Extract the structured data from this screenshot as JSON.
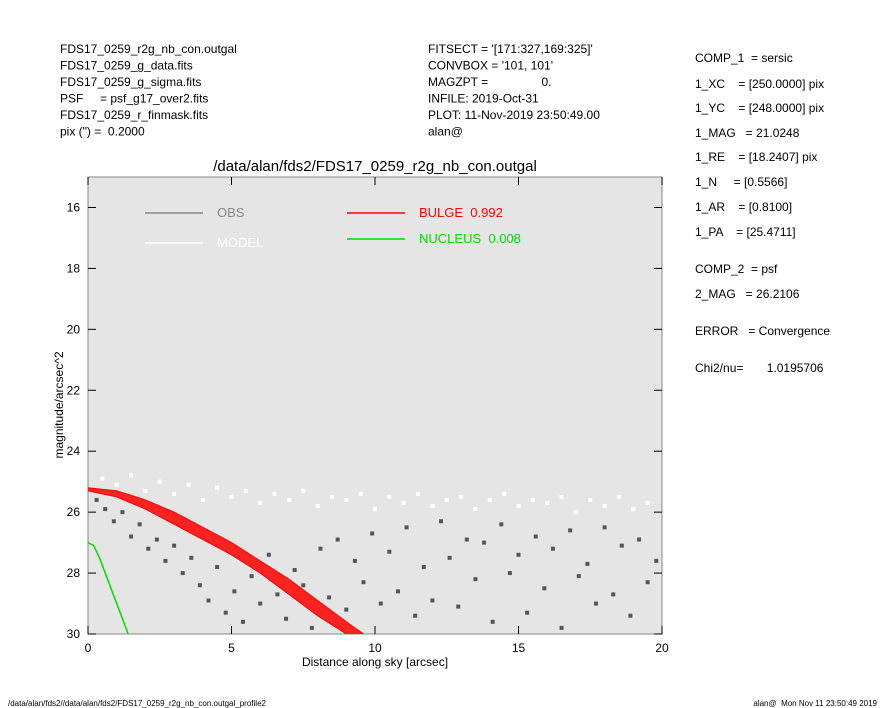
{
  "header": {
    "left": [
      "FDS17_0259_r2g_nb_con.outgal",
      "FDS17_0259_g_data.fits",
      "FDS17_0259_g_sigma.fits",
      "PSF     = psf_g17_over2.fits",
      "FDS17_0259_r_finmask.fits",
      "pix (\") =  0.2000"
    ],
    "middle": [
      "FITSECT = '[171:327,169:325]'",
      "CONVBOX = '101, 101'",
      "MAGZPT =                0.",
      "INFILE: 2019-Oct-31",
      "PLOT: 11-Nov-2019 23:50:49.00",
      "alan@"
    ]
  },
  "params": [
    "COMP_1  = sersic",
    "1_XC    = [250.0000] pix",
    "1_YC    = [248.0000] pix",
    "1_MAG   = 21.0248",
    "1_RE    = [18.2407] pix",
    "1_N     = [0.5566]",
    "1_AR    = [0.8100]",
    "1_PA    = [25.4711]",
    "COMP_2  = psf",
    "2_MAG   = 26.2106",
    "ERROR   = Convergence",
    "Chi2/nu=       1.0195706"
  ],
  "footer": {
    "left": "/data/alan/fds2//data/alan/fds2/FDS17_0259_r2g_nb_con.outgal_profile2",
    "right": "alan@  Mon Nov 11 23:50:49 2019"
  },
  "chart_data": {
    "type": "scatter",
    "title": "/data/alan/fds2/FDS17_0259_r2g_nb_con.outgal",
    "xlabel": "Distance along sky [arcsec]",
    "ylabel": "magnitude/arcsec^2",
    "xlim": [
      0,
      20
    ],
    "ylim": [
      30,
      15
    ],
    "xticks": [
      0,
      5,
      10,
      15,
      20
    ],
    "yticks": [
      16,
      18,
      20,
      22,
      24,
      26,
      28,
      30
    ],
    "series": [
      {
        "name": "OBS",
        "kind": "scatter",
        "color": "#555555",
        "legend_color": "#888888",
        "x": [
          0.3,
          0.6,
          0.9,
          1.2,
          1.5,
          1.8,
          2.1,
          2.4,
          2.7,
          3.0,
          3.3,
          3.6,
          3.9,
          4.2,
          4.5,
          4.8,
          5.1,
          5.4,
          5.7,
          6.0,
          6.3,
          6.6,
          6.9,
          7.2,
          7.5,
          7.8,
          8.1,
          8.4,
          8.7,
          9.0,
          9.3,
          9.6,
          9.9,
          10.2,
          10.5,
          10.8,
          11.1,
          11.4,
          11.7,
          12.0,
          12.3,
          12.6,
          12.9,
          13.2,
          13.5,
          13.8,
          14.1,
          14.4,
          14.7,
          15.0,
          15.3,
          15.6,
          15.9,
          16.2,
          16.5,
          16.8,
          17.1,
          17.4,
          17.7,
          18.0,
          18.3,
          18.6,
          18.9,
          19.2,
          19.5,
          19.8
        ],
        "values": [
          25.6,
          25.9,
          26.3,
          26.0,
          26.8,
          26.4,
          27.2,
          26.9,
          27.6,
          27.1,
          28.0,
          27.5,
          28.4,
          28.9,
          27.8,
          29.3,
          28.6,
          29.6,
          28.1,
          29.0,
          27.4,
          28.7,
          29.5,
          27.9,
          28.4,
          29.8,
          27.2,
          28.8,
          26.9,
          29.2,
          27.6,
          28.3,
          26.7,
          29.0,
          27.3,
          28.6,
          26.5,
          29.4,
          27.8,
          28.9,
          26.3,
          27.5,
          29.1,
          26.9,
          28.2,
          27.0,
          29.6,
          26.4,
          28.0,
          27.4,
          29.3,
          26.8,
          28.5,
          27.2,
          29.8,
          26.6,
          28.1,
          27.7,
          29.0,
          26.5,
          28.7,
          27.1,
          29.4,
          26.9,
          28.3,
          27.6
        ]
      },
      {
        "name": "MODEL",
        "kind": "scatter",
        "color": "#ffffff",
        "legend_color": "#ffffff",
        "x": [
          0.5,
          1.0,
          1.5,
          2.0,
          2.5,
          3.0,
          3.5,
          4.0,
          4.5,
          5.0,
          5.5,
          6.0,
          6.5,
          7.0,
          7.5,
          8.0,
          8.5,
          9.0,
          9.5,
          10.0,
          10.5,
          11.0,
          11.5,
          12.0,
          12.5,
          13.0,
          13.5,
          14.0,
          14.5,
          15.0,
          15.5,
          16.0,
          16.5,
          17.0,
          17.5,
          18.0,
          18.5,
          19.0,
          19.5
        ],
        "values": [
          24.9,
          25.1,
          24.8,
          25.3,
          25.0,
          25.4,
          25.1,
          25.6,
          25.2,
          25.5,
          25.3,
          25.7,
          25.4,
          25.6,
          25.3,
          25.8,
          25.5,
          25.6,
          25.4,
          25.9,
          25.5,
          25.7,
          25.4,
          25.8,
          25.6,
          25.5,
          25.9,
          25.6,
          25.4,
          25.8,
          25.6,
          25.7,
          25.5,
          26.0,
          25.6,
          25.8,
          25.5,
          25.9,
          25.7
        ]
      },
      {
        "name": "BULGE  0.992",
        "kind": "band",
        "color": "#ff0000",
        "x": [
          0,
          1,
          2,
          3,
          4,
          5,
          6,
          7,
          8,
          9,
          9.6
        ],
        "values": [
          25.2,
          25.3,
          25.6,
          26.0,
          26.5,
          27.0,
          27.6,
          28.2,
          28.9,
          29.6,
          30.0
        ],
        "lower": [
          25.3,
          25.5,
          25.9,
          26.4,
          26.9,
          27.4,
          28.0,
          28.7,
          29.4,
          30.0,
          30.4
        ]
      },
      {
        "name": "NUCLEUS  0.008",
        "kind": "line",
        "color": "#00dd00",
        "x": [
          0,
          0.2,
          0.4,
          0.6,
          0.8,
          1.0,
          1.2,
          1.4
        ],
        "values": [
          27.0,
          27.1,
          27.5,
          28.0,
          28.5,
          29.0,
          29.5,
          30.0
        ]
      }
    ]
  }
}
